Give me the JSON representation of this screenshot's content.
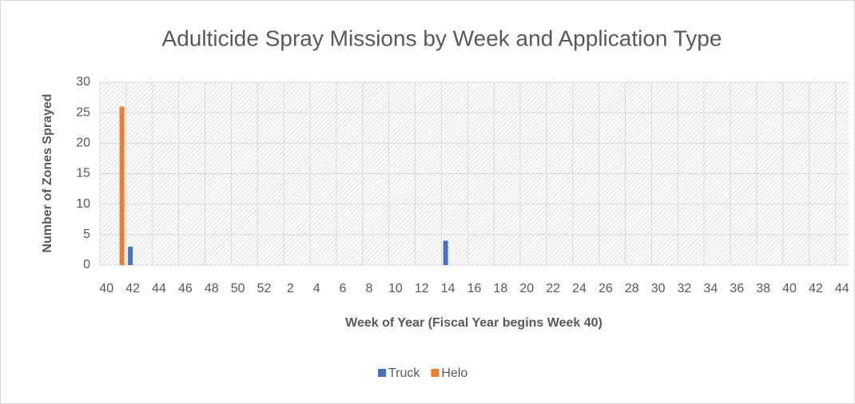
{
  "chart_data": {
    "type": "bar",
    "title": "Adulticide Spray Missions by Week and Application Type",
    "x_label": "Week of Year (Fiscal Year begins Week 40)",
    "y_label": "Number of Zones Sprayed",
    "categories": [
      40,
      null,
      42,
      null,
      44,
      null,
      46,
      null,
      48,
      null,
      50,
      null,
      52,
      null,
      2,
      null,
      4,
      null,
      6,
      null,
      8,
      null,
      10,
      null,
      12,
      null,
      14,
      null,
      16,
      null,
      18,
      null,
      20,
      null,
      22,
      null,
      24,
      null,
      26,
      null,
      28,
      null,
      30,
      null,
      32,
      null,
      34,
      null,
      36,
      null,
      38,
      null,
      40,
      null,
      42,
      null,
      44
    ],
    "series": [
      {
        "name": "Truck",
        "color": "#4472c4",
        "values": [
          0,
          0,
          3,
          0,
          0,
          0,
          0,
          0,
          0,
          0,
          0,
          0,
          0,
          0,
          0,
          0,
          0,
          0,
          0,
          0,
          0,
          0,
          0,
          0,
          0,
          0,
          4,
          0,
          0,
          0,
          0,
          0,
          0,
          0,
          0,
          0,
          0,
          0,
          0,
          0,
          0,
          0,
          0,
          0,
          0,
          0,
          0,
          0,
          0,
          0,
          0,
          0,
          0,
          0,
          0,
          0,
          0
        ]
      },
      {
        "name": "Helo",
        "color": "#ed7d31",
        "values": [
          0,
          26,
          0,
          0,
          0,
          0,
          0,
          0,
          0,
          0,
          0,
          0,
          0,
          0,
          0,
          0,
          0,
          0,
          0,
          0,
          0,
          0,
          0,
          0,
          0,
          0,
          0,
          0,
          0,
          0,
          0,
          0,
          0,
          0,
          0,
          0,
          0,
          0,
          0,
          0,
          0,
          0,
          0,
          0,
          0,
          0,
          0,
          0,
          0,
          0,
          0,
          0,
          0,
          0,
          0,
          0,
          0
        ]
      }
    ],
    "ylim": [
      0,
      30
    ],
    "yticks": [
      0,
      5,
      10,
      15,
      20,
      25,
      30
    ],
    "grid": true,
    "legend": "bottom"
  }
}
